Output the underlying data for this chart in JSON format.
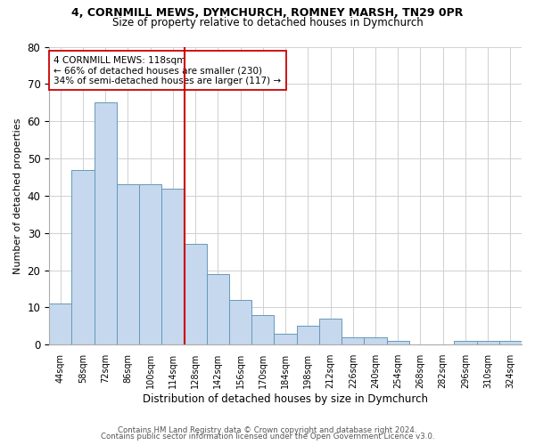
{
  "title1": "4, CORNMILL MEWS, DYMCHURCH, ROMNEY MARSH, TN29 0PR",
  "title2": "Size of property relative to detached houses in Dymchurch",
  "xlabel": "Distribution of detached houses by size in Dymchurch",
  "ylabel": "Number of detached properties",
  "categories": [
    "44sqm",
    "58sqm",
    "72sqm",
    "86sqm",
    "100sqm",
    "114sqm",
    "128sqm",
    "142sqm",
    "156sqm",
    "170sqm",
    "184sqm",
    "198sqm",
    "212sqm",
    "226sqm",
    "240sqm",
    "254sqm",
    "268sqm",
    "282sqm",
    "296sqm",
    "310sqm",
    "324sqm"
  ],
  "values": [
    11,
    47,
    65,
    43,
    43,
    42,
    27,
    19,
    12,
    8,
    3,
    5,
    7,
    2,
    2,
    1,
    0,
    0,
    1,
    1,
    1
  ],
  "bar_color": "#c5d8ed",
  "bar_edge_color": "#6699bb",
  "vline_x": 5.5,
  "vline_color": "#cc0000",
  "annotation_text": "4 CORNMILL MEWS: 118sqm\n← 66% of detached houses are smaller (230)\n34% of semi-detached houses are larger (117) →",
  "annotation_box_color": "#ffffff",
  "annotation_box_edge": "#cc0000",
  "ylim": [
    0,
    80
  ],
  "yticks": [
    0,
    10,
    20,
    30,
    40,
    50,
    60,
    70,
    80
  ],
  "footnote1": "Contains HM Land Registry data © Crown copyright and database right 2024.",
  "footnote2": "Contains public sector information licensed under the Open Government Licence v3.0.",
  "background_color": "#ffffff",
  "grid_color": "#d0d0d0"
}
